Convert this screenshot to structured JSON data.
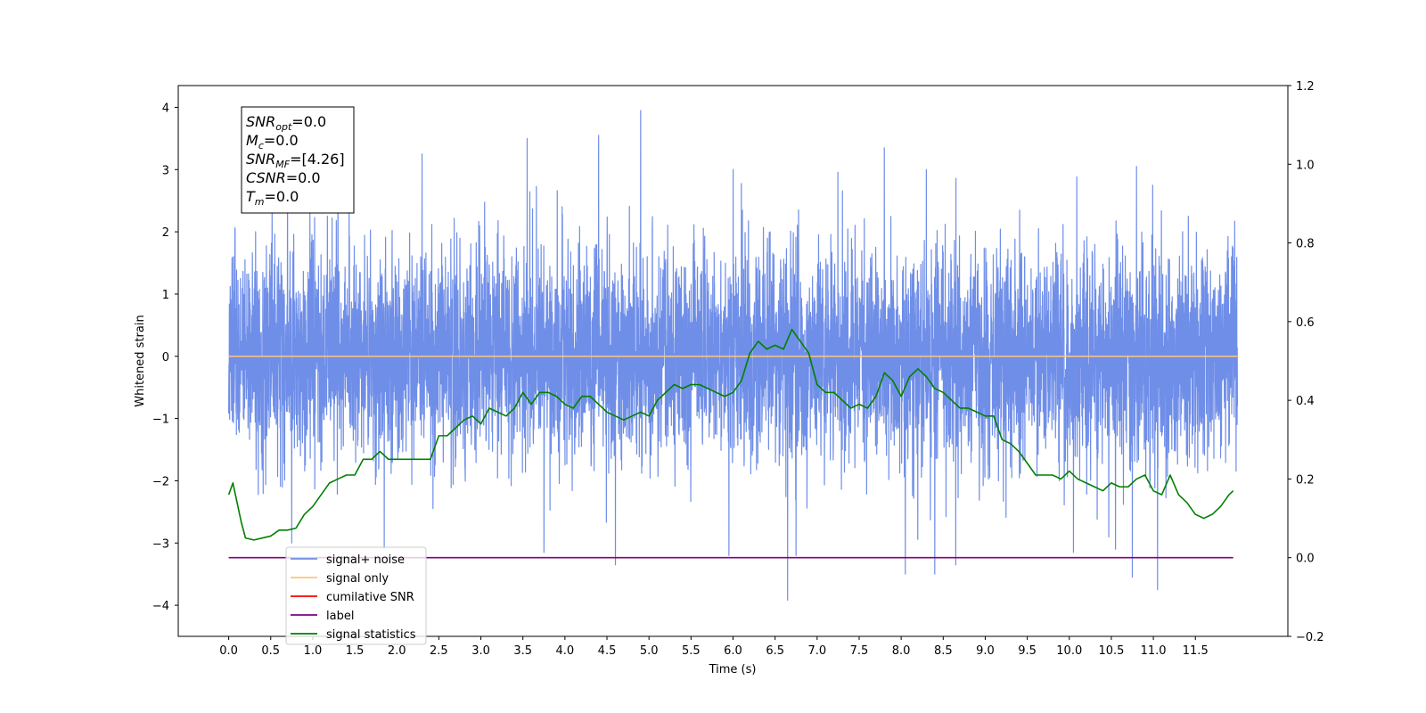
{
  "chart_data": {
    "type": "line",
    "xlabel": "Time (s)",
    "ylabel_left": "Whitened strain",
    "ylabel_right": "",
    "xlim": [
      -0.6,
      12.6
    ],
    "ylim_left": [
      -4.5,
      4.35
    ],
    "ylim_right": [
      -0.2,
      1.2
    ],
    "x_ticks": [
      0.0,
      0.5,
      1.0,
      1.5,
      2.0,
      2.5,
      3.0,
      3.5,
      4.0,
      4.5,
      5.0,
      5.5,
      6.0,
      6.5,
      7.0,
      7.5,
      8.0,
      8.5,
      9.0,
      9.5,
      10.0,
      10.5,
      11.0,
      11.5
    ],
    "x_tick_labels": [
      "0.0",
      "0.5",
      "1.0",
      "1.5",
      "2.0",
      "2.5",
      "3.0",
      "3.5",
      "4.0",
      "4.5",
      "5.0",
      "5.5",
      "6.0",
      "6.5",
      "7.0",
      "7.5",
      "8.0",
      "8.5",
      "9.0",
      "9.5",
      "10.0",
      "10.5",
      "11.0",
      "11.5"
    ],
    "y_left_ticks": [
      4,
      3,
      2,
      1,
      0,
      -1,
      -2,
      -3,
      -4
    ],
    "y_left_tick_labels": [
      "4",
      "3",
      "2",
      "1",
      "0",
      "−1",
      "−2",
      "−3",
      "−4"
    ],
    "y_right_ticks": [
      1.2,
      1.0,
      0.8,
      0.6,
      0.4,
      0.2,
      0.0,
      -0.2
    ],
    "y_right_tick_labels": [
      "1.2",
      "1.0",
      "0.8",
      "0.6",
      "0.4",
      "0.2",
      "0.0",
      "−0.2"
    ],
    "grid": false,
    "legend_position": "lower-left",
    "annotation_lines": [
      {
        "sym": "SNR",
        "sub": "opt",
        "rest": "=0.0"
      },
      {
        "sym": "M",
        "sub": "c",
        "rest": "=0.0"
      },
      {
        "sym": "SNR",
        "sub": "MF",
        "rest": "=[4.26]"
      },
      {
        "sym": "CSNR",
        "sub": "",
        "rest": "=0.0"
      },
      {
        "sym": "T",
        "sub": "m",
        "rest": "=0.0"
      }
    ],
    "series": [
      {
        "name": "signal+ noise",
        "axis": "left",
        "color": "#6f8ee8",
        "x_range": [
          0.0,
          12.0
        ],
        "noise_sigma": 0.85,
        "peaks": [
          [
            4.9,
            3.95
          ],
          [
            10.05,
            3.6
          ],
          [
            3.55,
            3.5
          ],
          [
            4.4,
            3.55
          ],
          [
            7.8,
            3.35
          ],
          [
            2.3,
            3.25
          ],
          [
            10.8,
            3.05
          ],
          [
            1.3,
            3.05
          ],
          [
            6.0,
            3.0
          ],
          [
            8.3,
            3.0
          ],
          [
            0.7,
            3.1
          ],
          [
            6.65,
            -3.92
          ],
          [
            11.05,
            -3.75
          ],
          [
            10.75,
            -3.55
          ],
          [
            8.05,
            -3.5
          ],
          [
            8.4,
            -3.5
          ],
          [
            4.6,
            -3.35
          ],
          [
            8.65,
            -3.35
          ],
          [
            6.75,
            -3.2
          ],
          [
            5.95,
            -3.2
          ],
          [
            3.75,
            -3.15
          ],
          [
            10.05,
            -3.15
          ],
          [
            10.55,
            -3.1
          ],
          [
            0.75,
            -3.0
          ],
          [
            1.85,
            -3.1
          ]
        ]
      },
      {
        "name": "signal only",
        "axis": "left",
        "color": "#ffc57a",
        "x": [
          0.0,
          12.0
        ],
        "y": [
          0.0,
          0.0
        ]
      },
      {
        "name": "cumilative SNR",
        "axis": "right",
        "color": "#ff0000",
        "x": [],
        "y": []
      },
      {
        "name": "label",
        "axis": "right",
        "color": "#800080",
        "x": [
          0.0,
          11.95
        ],
        "y": [
          0.0,
          0.0
        ]
      },
      {
        "name": "signal statistics",
        "axis": "right",
        "color": "#008000",
        "x": [
          0.0,
          0.05,
          0.1,
          0.15,
          0.2,
          0.3,
          0.5,
          0.6,
          0.7,
          0.8,
          0.9,
          1.0,
          1.1,
          1.2,
          1.3,
          1.4,
          1.5,
          1.6,
          1.7,
          1.8,
          1.9,
          2.0,
          2.1,
          2.2,
          2.3,
          2.4,
          2.5,
          2.6,
          2.7,
          2.8,
          2.9,
          3.0,
          3.1,
          3.2,
          3.3,
          3.4,
          3.5,
          3.6,
          3.7,
          3.8,
          3.9,
          4.0,
          4.1,
          4.2,
          4.3,
          4.4,
          4.5,
          4.6,
          4.7,
          4.8,
          4.9,
          5.0,
          5.1,
          5.2,
          5.3,
          5.4,
          5.5,
          5.6,
          5.7,
          5.8,
          5.9,
          6.0,
          6.1,
          6.2,
          6.3,
          6.4,
          6.5,
          6.6,
          6.7,
          6.8,
          6.9,
          7.0,
          7.1,
          7.2,
          7.3,
          7.4,
          7.5,
          7.6,
          7.7,
          7.8,
          7.9,
          8.0,
          8.1,
          8.2,
          8.3,
          8.4,
          8.5,
          8.6,
          8.7,
          8.8,
          8.9,
          9.0,
          9.1,
          9.2,
          9.3,
          9.4,
          9.5,
          9.6,
          9.7,
          9.8,
          9.9,
          10.0,
          10.1,
          10.2,
          10.3,
          10.4,
          10.5,
          10.6,
          10.7,
          10.8,
          10.9,
          11.0,
          11.1,
          11.2,
          11.3,
          11.4,
          11.5,
          11.6,
          11.7,
          11.8,
          11.9,
          11.95
        ],
        "y": [
          0.16,
          0.19,
          0.14,
          0.09,
          0.05,
          0.045,
          0.055,
          0.07,
          0.07,
          0.075,
          0.11,
          0.13,
          0.16,
          0.19,
          0.2,
          0.21,
          0.21,
          0.25,
          0.25,
          0.27,
          0.25,
          0.25,
          0.25,
          0.25,
          0.25,
          0.25,
          0.31,
          0.31,
          0.33,
          0.35,
          0.36,
          0.34,
          0.38,
          0.37,
          0.36,
          0.38,
          0.42,
          0.39,
          0.42,
          0.42,
          0.41,
          0.39,
          0.38,
          0.41,
          0.41,
          0.39,
          0.37,
          0.36,
          0.35,
          0.36,
          0.37,
          0.36,
          0.4,
          0.42,
          0.44,
          0.43,
          0.44,
          0.44,
          0.43,
          0.42,
          0.41,
          0.42,
          0.45,
          0.52,
          0.55,
          0.53,
          0.54,
          0.53,
          0.58,
          0.55,
          0.52,
          0.44,
          0.42,
          0.42,
          0.4,
          0.38,
          0.39,
          0.38,
          0.41,
          0.47,
          0.45,
          0.41,
          0.46,
          0.48,
          0.46,
          0.43,
          0.42,
          0.4,
          0.38,
          0.38,
          0.37,
          0.36,
          0.36,
          0.3,
          0.29,
          0.27,
          0.24,
          0.21,
          0.21,
          0.21,
          0.2,
          0.22,
          0.2,
          0.19,
          0.18,
          0.17,
          0.19,
          0.18,
          0.18,
          0.2,
          0.21,
          0.17,
          0.16,
          0.21,
          0.16,
          0.14,
          0.11,
          0.1,
          0.11,
          0.13,
          0.16,
          0.17
        ]
      }
    ]
  }
}
